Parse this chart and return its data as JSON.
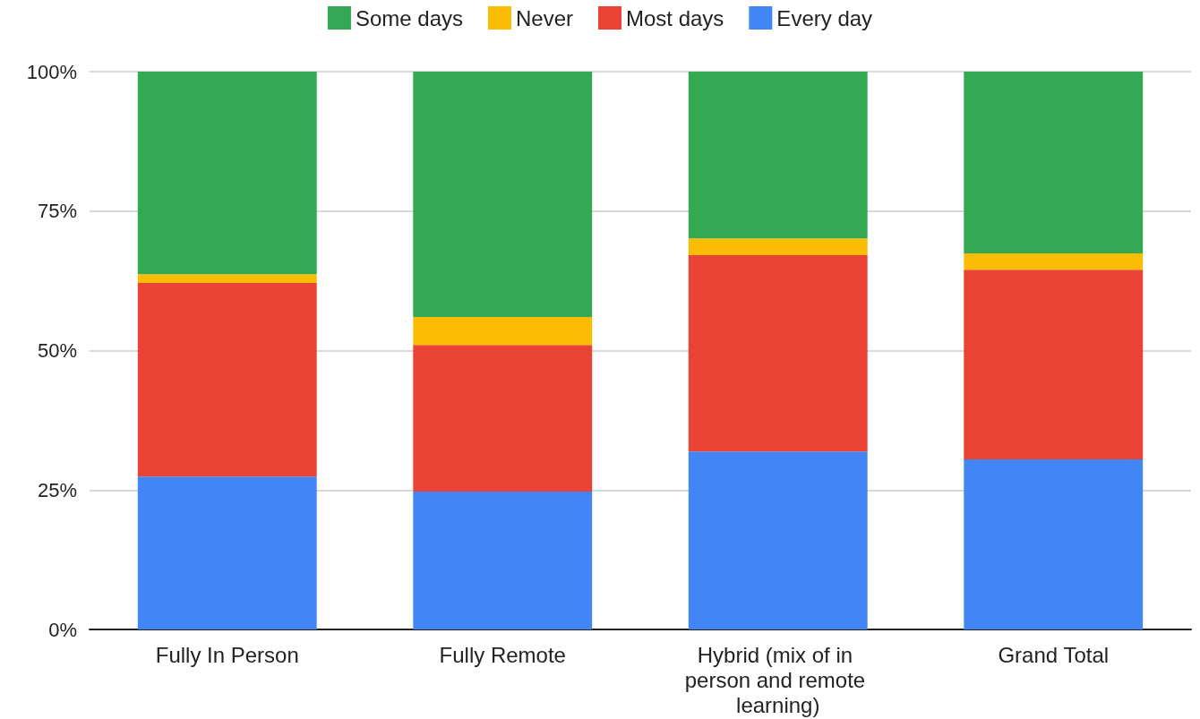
{
  "chart_data": {
    "type": "bar",
    "stacked": true,
    "categories": [
      "Fully In Person",
      "Fully Remote",
      "Hybrid (mix of in person and remote learning)",
      "Grand Total"
    ],
    "series": [
      {
        "name": "Every day",
        "color": "#4285f4",
        "values": [
          27.4,
          24.7,
          31.9,
          30.5
        ]
      },
      {
        "name": "Most days",
        "color": "#ea4335",
        "values": [
          34.7,
          26.3,
          35.2,
          34.0
        ]
      },
      {
        "name": "Never",
        "color": "#fbbc04",
        "values": [
          1.6,
          5.0,
          3.0,
          2.9
        ]
      },
      {
        "name": "Some days",
        "color": "#34a853",
        "values": [
          36.3,
          44.0,
          29.9,
          32.6
        ]
      }
    ],
    "ylim": [
      0,
      100
    ],
    "yticks": [
      {
        "value": 0,
        "label": "0%"
      },
      {
        "value": 25,
        "label": "25%"
      },
      {
        "value": 50,
        "label": "50%"
      },
      {
        "value": 75,
        "label": "75%"
      },
      {
        "value": 100,
        "label": "100%"
      }
    ],
    "grid": "y",
    "legend": "top"
  }
}
